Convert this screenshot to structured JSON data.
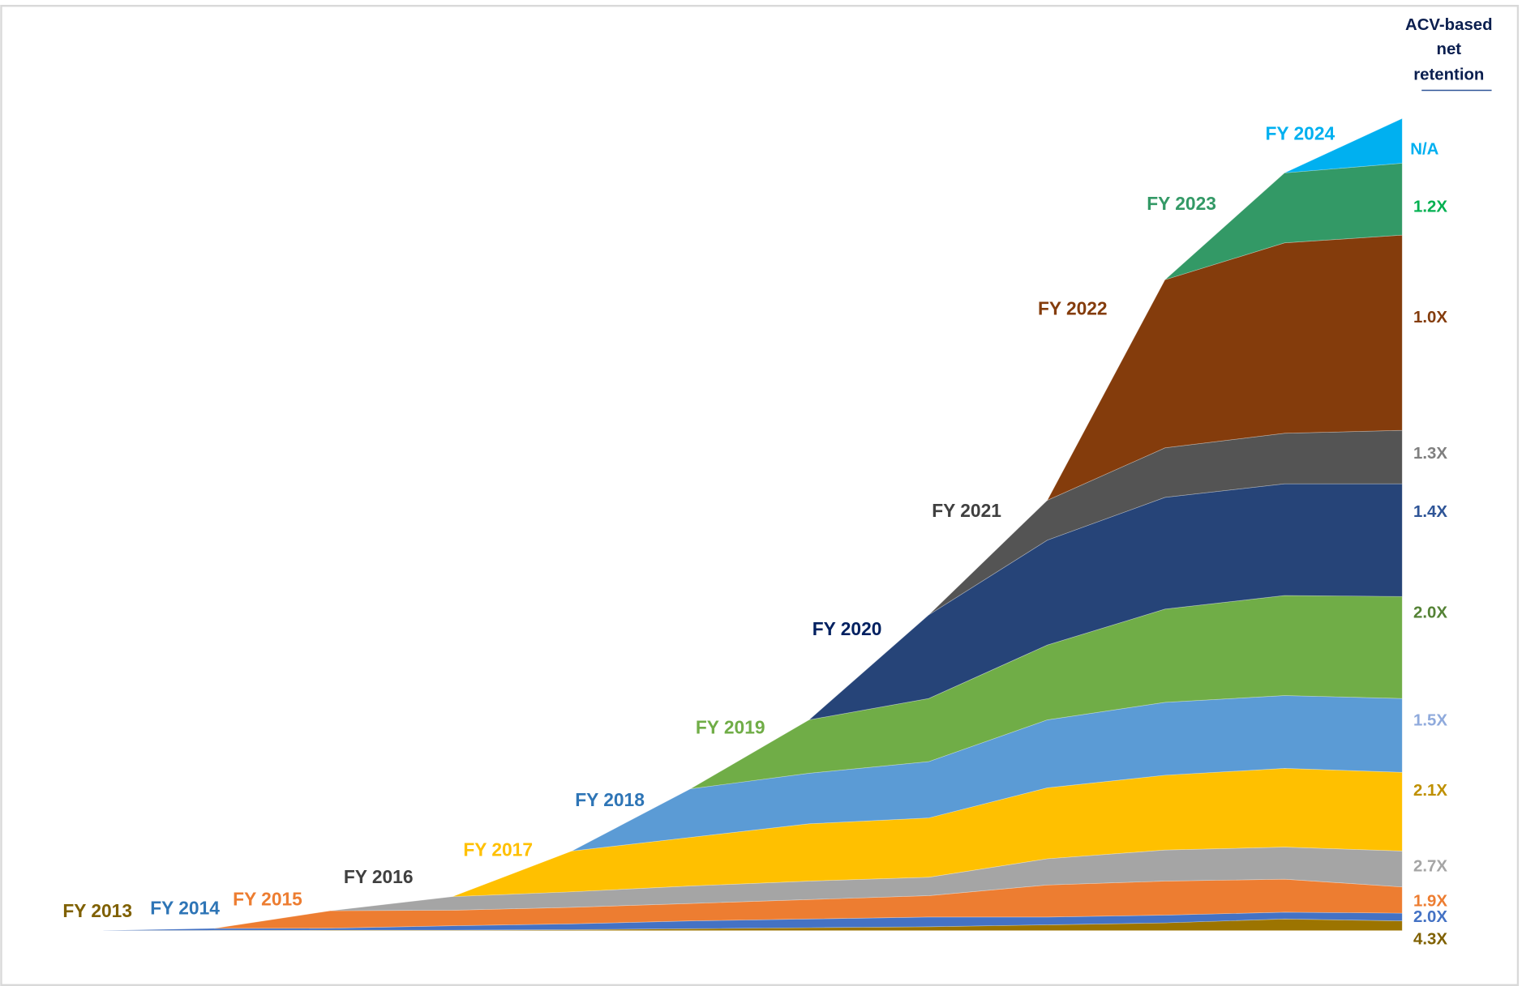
{
  "chart_data": {
    "type": "area",
    "stacked": true,
    "title": "",
    "xlabel": "",
    "ylabel": "",
    "grid": false,
    "legend": "none",
    "right_header": [
      "ACV-based",
      "net",
      "retention"
    ],
    "series": [
      {
        "name": "FY 2013",
        "retention": "4.3X",
        "color": "#9c7400",
        "label_color": "#7f6000",
        "retention_color": "#7f6000",
        "values": [
          0,
          0.3,
          0.5,
          0.5,
          1,
          2,
          3,
          4,
          6,
          8,
          12,
          10
        ]
      },
      {
        "name": "FY 2014",
        "retention": "2.0X",
        "color": "#4472c4",
        "label_color": "#2e75b6",
        "retention_color": "#4472c4",
        "values": [
          0,
          2,
          2,
          4.5,
          6,
          8,
          9,
          10,
          8,
          8,
          7,
          8
        ]
      },
      {
        "name": "FY 2015",
        "retention": "1.9X",
        "color": "#ed7d31",
        "label_color": "#ed7d31",
        "retention_color": "#ed7d31",
        "values": [
          0,
          0,
          18,
          16,
          17,
          18,
          20,
          22,
          33,
          35,
          34,
          27
        ]
      },
      {
        "name": "FY 2016",
        "retention": "2.7X",
        "color": "#a5a5a5",
        "label_color": "#404040",
        "retention_color": "#a5a5a5",
        "values": [
          0,
          0,
          0,
          14,
          16,
          18,
          19,
          19,
          27,
          32,
          33,
          37
        ]
      },
      {
        "name": "FY 2017",
        "retention": "2.1X",
        "color": "#ffc000",
        "label_color": "#ffc000",
        "retention_color": "#bf9000",
        "values": [
          0,
          0,
          0,
          0,
          42,
          50,
          59,
          61,
          73,
          77,
          81,
          81
        ]
      },
      {
        "name": "FY 2018",
        "retention": "1.5X",
        "color": "#5b9bd5",
        "label_color": "#2e75b6",
        "retention_color": "#8faadc",
        "values": [
          0,
          0,
          0,
          0,
          0,
          50,
          52,
          58,
          70,
          75,
          75,
          76
        ]
      },
      {
        "name": "FY 2019",
        "retention": "2.0X",
        "color": "#70ad47",
        "label_color": "#70ad47",
        "retention_color": "#548235",
        "values": [
          0,
          0,
          0,
          0,
          0,
          0,
          55,
          65,
          77,
          96,
          103,
          105
        ]
      },
      {
        "name": "FY 2020",
        "retention": "1.4X",
        "color": "#264478",
        "label_color": "#002060",
        "retention_color": "#2f5597",
        "values": [
          0,
          0,
          0,
          0,
          0,
          0,
          0,
          86,
          108,
          115,
          115,
          116
        ]
      },
      {
        "name": "FY 2021",
        "retention": "1.3X",
        "color": "#545454",
        "label_color": "#404040",
        "retention_color": "#7f7f7f",
        "values": [
          0,
          0,
          0,
          0,
          0,
          0,
          0,
          0,
          41,
          51,
          52,
          55
        ]
      },
      {
        "name": "FY 2022",
        "retention": "1.0X",
        "color": "#843c0c",
        "label_color": "#843c0c",
        "retention_color": "#843c0c",
        "values": [
          0,
          0,
          0,
          0,
          0,
          0,
          0,
          0,
          0,
          173,
          196,
          201
        ]
      },
      {
        "name": "FY 2023",
        "retention": "1.2X",
        "color": "#339966",
        "label_color": "#339966",
        "retention_color": "#00b050",
        "values": [
          0,
          0,
          0,
          0,
          0,
          0,
          0,
          0,
          0,
          0,
          72,
          74
        ]
      },
      {
        "name": "FY 2024",
        "retention": "N/A",
        "color": "#00b0f0",
        "label_color": "#00b0f0",
        "retention_color": "#00b0f0",
        "values": [
          0,
          0,
          0,
          0,
          0,
          0,
          0,
          0,
          0,
          0,
          0,
          46
        ]
      }
    ]
  }
}
